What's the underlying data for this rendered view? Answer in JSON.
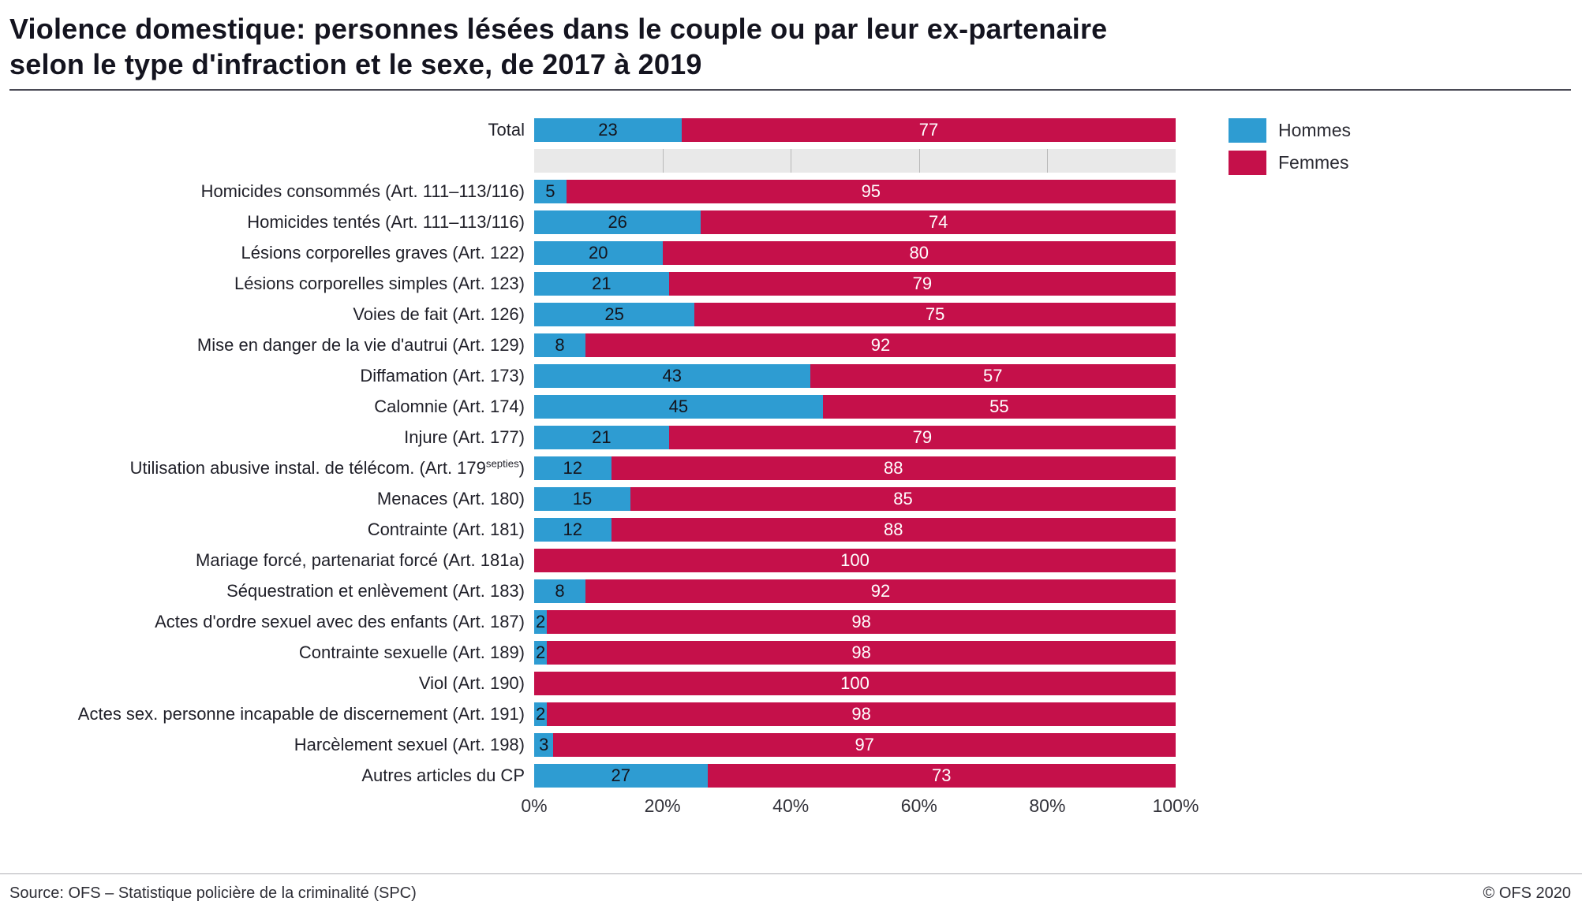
{
  "title": {
    "line1": "Violence domestique: personnes lésées dans le couple ou par leur ex-partenaire",
    "line2": "selon le type d'infraction et le sexe, de 2017 à 2019"
  },
  "legend": [
    {
      "label": "Hommes",
      "color": "#2e9cd2"
    },
    {
      "label": "Femmes",
      "color": "#c5104a"
    }
  ],
  "footer": {
    "source": "Source: OFS – Statistique policière de la criminalité (SPC)",
    "copyright": "© OFS 2020"
  },
  "chart_data": {
    "type": "bar",
    "orientation": "horizontal",
    "stacked": true,
    "title": "Violence domestique: personnes lésées dans le couple ou par leur ex-partenaire selon le type d'infraction et le sexe, de 2017 à 2019",
    "xlabel": "",
    "ylabel": "",
    "unit": "%",
    "xlim": [
      0,
      100
    ],
    "x_ticks": [
      "0%",
      "20%",
      "40%",
      "60%",
      "80%",
      "100%"
    ],
    "gridline_pcts": [
      20,
      40,
      60,
      80
    ],
    "legend_position": "top-right",
    "series_names": [
      "Hommes",
      "Femmes"
    ],
    "colors": {
      "hommes": "#2e9cd2",
      "femmes": "#c5104a"
    },
    "rows": [
      {
        "label": "Total",
        "hommes": 23,
        "femmes": 77
      },
      {
        "spacer": true
      },
      {
        "label": "Homicides consommés (Art. 111–113/116)",
        "hommes": 5,
        "femmes": 95
      },
      {
        "label": "Homicides tentés (Art. 111–113/116)",
        "hommes": 26,
        "femmes": 74
      },
      {
        "label": "Lésions corporelles graves (Art. 122)",
        "hommes": 20,
        "femmes": 80
      },
      {
        "label": "Lésions corporelles simples (Art. 123)",
        "hommes": 21,
        "femmes": 79
      },
      {
        "label": "Voies de fait (Art. 126)",
        "hommes": 25,
        "femmes": 75
      },
      {
        "label": "Mise en danger de la vie d'autrui (Art. 129)",
        "hommes": 8,
        "femmes": 92
      },
      {
        "label": "Diffamation (Art. 173)",
        "hommes": 43,
        "femmes": 57
      },
      {
        "label": "Calomnie (Art. 174)",
        "hommes": 45,
        "femmes": 55
      },
      {
        "label": "Injure (Art. 177)",
        "hommes": 21,
        "femmes": 79
      },
      {
        "label": "Utilisation abusive instal. de télécom. (Art. 179",
        "label_sup": "septies",
        "label_post": ")",
        "hommes": 12,
        "femmes": 88
      },
      {
        "label": "Menaces (Art. 180)",
        "hommes": 15,
        "femmes": 85
      },
      {
        "label": "Contrainte (Art. 181)",
        "hommes": 12,
        "femmes": 88
      },
      {
        "label": "Mariage forcé, partenariat forcé (Art. 181a)",
        "hommes": 0,
        "femmes": 100
      },
      {
        "label": "Séquestration et enlèvement  (Art. 183)",
        "hommes": 8,
        "femmes": 92
      },
      {
        "label": "Actes d'ordre sexuel avec des enfants (Art. 187)",
        "hommes": 2,
        "femmes": 98
      },
      {
        "label": "Contrainte sexuelle (Art. 189)",
        "hommes": 2,
        "femmes": 98
      },
      {
        "label": "Viol (Art. 190)",
        "hommes": 0,
        "femmes": 100
      },
      {
        "label": "Actes sex. personne incapable de discernement (Art. 191)",
        "hommes": 2,
        "femmes": 98
      },
      {
        "label": "Harcèlement sexuel (Art. 198)",
        "hommes": 3,
        "femmes": 97
      },
      {
        "label": "Autres articles du CP",
        "hommes": 27,
        "femmes": 73
      }
    ]
  }
}
